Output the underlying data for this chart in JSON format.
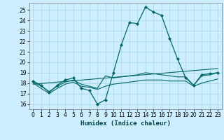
{
  "xlabel": "Humidex (Indice chaleur)",
  "background_color": "#cceeff",
  "grid_color": "#aadddd",
  "line_color": "#006666",
  "xlim": [
    -0.5,
    23.5
  ],
  "ylim": [
    15.5,
    25.7
  ],
  "yticks": [
    16,
    17,
    18,
    19,
    20,
    21,
    22,
    23,
    24,
    25
  ],
  "xticks": [
    0,
    1,
    2,
    3,
    4,
    5,
    6,
    7,
    8,
    9,
    10,
    11,
    12,
    13,
    14,
    15,
    16,
    17,
    18,
    19,
    20,
    21,
    22,
    23
  ],
  "line1_x": [
    0,
    1,
    2,
    3,
    4,
    5,
    6,
    7,
    8,
    9,
    10,
    11,
    12,
    13,
    14,
    15,
    16,
    17,
    18,
    19,
    20,
    21,
    22,
    23
  ],
  "line1_y": [
    18.2,
    17.8,
    17.1,
    17.8,
    18.3,
    18.5,
    17.5,
    17.3,
    16.0,
    16.4,
    19.0,
    21.7,
    23.8,
    23.7,
    25.3,
    24.8,
    24.5,
    22.3,
    20.3,
    18.5,
    17.8,
    18.8,
    18.9,
    19.0
  ],
  "line2_x": [
    0,
    1,
    2,
    3,
    4,
    5,
    6,
    7,
    8,
    9,
    10,
    11,
    12,
    13,
    14,
    15,
    16,
    17,
    18,
    19,
    20,
    21,
    22,
    23
  ],
  "line2_y": [
    18.1,
    17.7,
    17.2,
    17.7,
    18.1,
    18.3,
    17.9,
    17.7,
    17.5,
    18.7,
    18.5,
    18.6,
    18.7,
    18.8,
    19.0,
    18.9,
    18.8,
    18.7,
    18.6,
    18.6,
    17.8,
    18.7,
    18.8,
    19.0
  ],
  "line3_x": [
    0,
    1,
    2,
    3,
    4,
    5,
    6,
    7,
    8,
    9,
    10,
    11,
    12,
    13,
    14,
    15,
    16,
    17,
    18,
    19,
    20,
    21,
    22,
    23
  ],
  "line3_y": [
    18.0,
    17.5,
    17.0,
    17.5,
    17.9,
    18.1,
    17.7,
    17.6,
    17.4,
    17.7,
    17.9,
    18.0,
    18.1,
    18.2,
    18.3,
    18.3,
    18.3,
    18.2,
    18.2,
    18.2,
    17.7,
    18.0,
    18.2,
    18.4
  ],
  "line4_x": [
    0,
    23
  ],
  "line4_y": [
    17.9,
    19.4
  ]
}
